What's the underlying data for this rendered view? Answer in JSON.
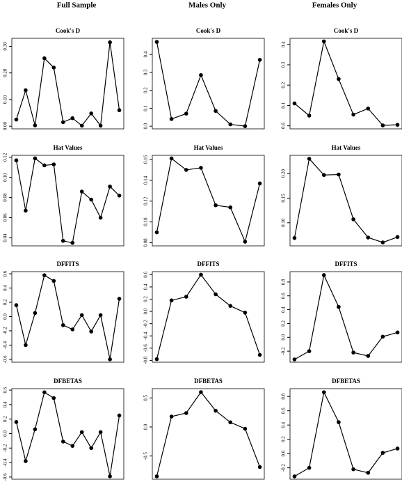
{
  "column_titles": [
    "Full Sample",
    "Males Only",
    "Females Only"
  ],
  "chart_data": [
    {
      "type": "line",
      "title": "Cook's D",
      "categories": [
        null,
        null,
        null,
        null,
        null,
        null,
        null,
        null,
        null,
        null,
        null,
        null
      ],
      "values": [
        0.025,
        0.135,
        0.003,
        0.255,
        0.22,
        0.015,
        0.03,
        0.002,
        0.048,
        0.002,
        0.315,
        0.06
      ],
      "color": "#000000",
      "ylim": [
        -0.01,
        0.33
      ],
      "yticks": [
        {
          "value": 0,
          "label": "0.00"
        },
        {
          "value": 0.1,
          "label": "0.10"
        },
        {
          "value": 0.2,
          "label": "0.20"
        },
        {
          "value": 0.3,
          "label": "0.30"
        }
      ]
    },
    {
      "type": "line",
      "title": "Cook's D",
      "categories": [
        null,
        null,
        null,
        null,
        null,
        null,
        null,
        null
      ],
      "values": [
        0.47,
        0.04,
        0.07,
        0.285,
        0.085,
        0.01,
        0.0,
        0.37
      ],
      "color": "#000000",
      "ylim": [
        -0.015,
        0.49
      ],
      "yticks": [
        {
          "value": 0,
          "label": "0.0"
        },
        0.1,
        0.2,
        0.3,
        0.4
      ]
    },
    {
      "type": "line",
      "title": "Cook's D",
      "categories": [
        null,
        null,
        null,
        null,
        null,
        null,
        null,
        null
      ],
      "values": [
        0.11,
        0.05,
        0.415,
        0.23,
        0.055,
        0.085,
        0.002,
        0.005
      ],
      "color": "#000000",
      "ylim": [
        -0.015,
        0.43
      ],
      "yticks": [
        {
          "value": 0,
          "label": "0.0"
        },
        0.1,
        0.2,
        0.3,
        0.4
      ]
    },
    {
      "type": "line",
      "title": "Hat Values",
      "categories": [
        null,
        null,
        null,
        null,
        null,
        null,
        null,
        null,
        null,
        null,
        null,
        null
      ],
      "values": [
        0.117,
        0.067,
        0.119,
        0.112,
        0.113,
        0.037,
        0.035,
        0.086,
        0.078,
        0.06,
        0.091,
        0.082
      ],
      "color": "#000000",
      "ylim": [
        0.032,
        0.122
      ],
      "yticks": [
        0.04,
        0.06,
        0.08,
        {
          "value": 0.1,
          "label": "0.10"
        },
        0.12
      ]
    },
    {
      "type": "line",
      "title": "Hat Values",
      "categories": [
        null,
        null,
        null,
        null,
        null,
        null,
        null,
        null
      ],
      "values": [
        0.09,
        0.161,
        0.15,
        0.152,
        0.116,
        0.114,
        0.081,
        0.137
      ],
      "color": "#000000",
      "ylim": [
        0.077,
        0.164
      ],
      "yticks": [
        0.08,
        {
          "value": 0.1,
          "label": "0.10"
        },
        0.12,
        0.14,
        0.16
      ]
    },
    {
      "type": "line",
      "title": "Hat Values",
      "categories": [
        null,
        null,
        null,
        null,
        null,
        null,
        null,
        null
      ],
      "values": [
        0.069,
        0.23,
        0.197,
        0.198,
        0.107,
        0.07,
        0.06,
        0.071
      ],
      "color": "#000000",
      "ylim": [
        0.053,
        0.237
      ],
      "yticks": [
        {
          "value": 0.1,
          "label": "0.10"
        },
        0.15,
        {
          "value": 0.2,
          "label": "0.20"
        }
      ]
    },
    {
      "type": "line",
      "title": "DFFITS",
      "categories": [
        null,
        null,
        null,
        null,
        null,
        null,
        null,
        null,
        null,
        null,
        null,
        null
      ],
      "values": [
        0.16,
        -0.4,
        0.05,
        0.58,
        0.5,
        -0.12,
        -0.18,
        0.02,
        -0.21,
        0.02,
        -0.6,
        0.25
      ],
      "color": "#000000",
      "ylim": [
        -0.64,
        0.63
      ],
      "yticks": [
        -0.6,
        -0.4,
        -0.2,
        {
          "value": 0,
          "label": "0.0"
        },
        0.2,
        0.4,
        0.6
      ]
    },
    {
      "type": "line",
      "title": "DFFITS",
      "categories": [
        null,
        null,
        null,
        null,
        null,
        null,
        null,
        null
      ],
      "values": [
        -0.78,
        0.18,
        0.24,
        0.6,
        0.28,
        0.09,
        -0.02,
        -0.71
      ],
      "color": "#000000",
      "ylim": [
        -0.83,
        0.65
      ],
      "yticks": [
        -0.8,
        -0.6,
        -0.4,
        -0.2,
        {
          "value": 0,
          "label": "0.0"
        },
        0.2,
        0.4,
        0.6
      ]
    },
    {
      "type": "line",
      "title": "DFFITS",
      "categories": [
        null,
        null,
        null,
        null,
        null,
        null,
        null,
        null
      ],
      "values": [
        -0.32,
        -0.2,
        0.9,
        0.44,
        -0.22,
        -0.27,
        0.01,
        0.07
      ],
      "color": "#000000",
      "ylim": [
        -0.36,
        0.95
      ],
      "yticks": [
        -0.2,
        {
          "value": 0,
          "label": "0.0"
        },
        0.2,
        0.4,
        0.6,
        0.8
      ]
    },
    {
      "type": "line",
      "title": "DFBETAS",
      "categories": [
        null,
        null,
        null,
        null,
        null,
        null,
        null,
        null,
        null,
        null,
        null,
        null
      ],
      "values": [
        0.16,
        -0.38,
        0.06,
        0.57,
        0.49,
        -0.11,
        -0.17,
        0.02,
        -0.2,
        0.02,
        -0.59,
        0.25
      ],
      "color": "#000000",
      "ylim": [
        -0.63,
        0.62
      ],
      "yticks": [
        -0.6,
        -0.4,
        -0.2,
        {
          "value": 0,
          "label": "0.0"
        },
        0.2,
        0.4,
        0.6
      ]
    },
    {
      "type": "line",
      "title": "DFBETAS",
      "categories": [
        null,
        null,
        null,
        null,
        null,
        null,
        null,
        null
      ],
      "values": [
        -0.85,
        0.18,
        0.24,
        0.6,
        0.28,
        0.08,
        -0.03,
        -0.69
      ],
      "color": "#000000",
      "ylim": [
        -0.9,
        0.66
      ],
      "yticks": [
        -0.5,
        {
          "value": 0,
          "label": "0.0"
        },
        0.5
      ]
    },
    {
      "type": "line",
      "title": "DFBETAS",
      "categories": [
        null,
        null,
        null,
        null,
        null,
        null,
        null,
        null
      ],
      "values": [
        -0.32,
        -0.2,
        0.86,
        0.44,
        -0.22,
        -0.27,
        0.01,
        0.07
      ],
      "color": "#000000",
      "ylim": [
        -0.36,
        0.91
      ],
      "yticks": [
        -0.2,
        {
          "value": 0,
          "label": "0.0"
        },
        0.2,
        0.4,
        0.6,
        0.8
      ]
    }
  ]
}
